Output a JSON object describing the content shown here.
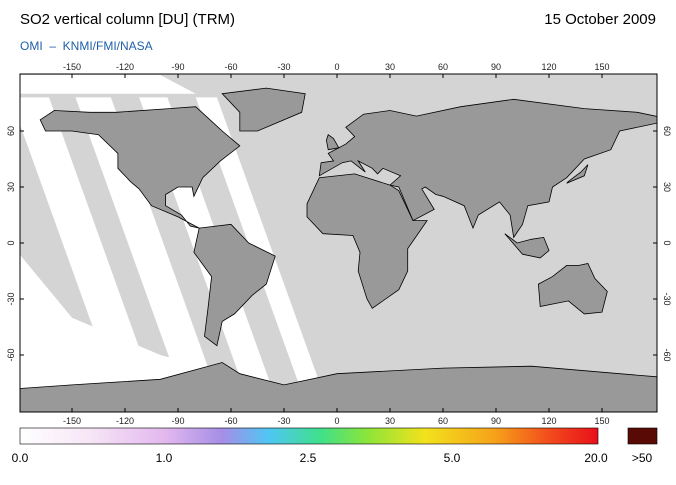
{
  "header": {
    "title": "SO2 vertical column [DU] (TRM)",
    "date": "15 October 2009",
    "subtitle": "OMI  –  KNMI/FMI/NASA"
  },
  "map": {
    "lon_ticks": [
      -150,
      -120,
      -90,
      -60,
      -30,
      0,
      30,
      60,
      90,
      120,
      150
    ],
    "lat_ticks": [
      60,
      30,
      0,
      -30,
      -60
    ]
  },
  "colorbar": {
    "labels": [
      "0.0",
      "1.0",
      "2.5",
      "5.0",
      "20.0"
    ],
    "overflow_label": ">50"
  }
}
